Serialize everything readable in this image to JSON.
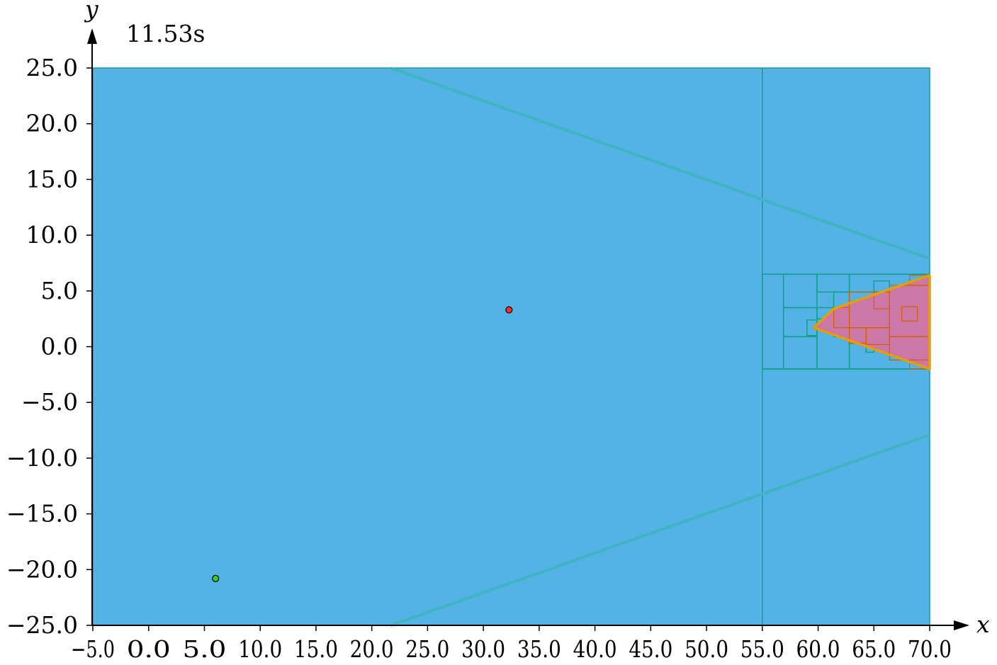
{
  "chart_data": {
    "type": "scatter",
    "xlabel": "x",
    "ylabel": "y",
    "annotation": "11.53s",
    "xlim": [
      -5,
      70
    ],
    "ylim": [
      -25,
      25
    ],
    "x_ticks": [
      -5,
      0,
      5,
      10,
      15,
      20,
      25,
      30,
      35,
      40,
      45,
      50,
      55,
      60,
      65,
      70
    ],
    "x_tick_labels": [
      "−5.0",
      "0.0",
      "5.0",
      "10.0",
      "15.0",
      "20.0",
      "25.0",
      "30.0",
      "35.0",
      "40.0",
      "45.0",
      "50.0",
      "55.0",
      "60.0",
      "65.0",
      "70.0"
    ],
    "y_ticks": [
      -25,
      -20,
      -15,
      -10,
      -5,
      0,
      5,
      10,
      15,
      20,
      25
    ],
    "y_tick_labels": [
      "−25.0",
      "−20.0",
      "−15.0",
      "−10.0",
      "−5.0",
      "0.0",
      "5.0",
      "10.0",
      "15.0",
      "20.0",
      "25.0"
    ],
    "grid": false,
    "colors": {
      "region_fill": "#55b2e5",
      "cell_edge": "#11a08a",
      "cone_line": "#3fb4c4",
      "target_fill": "#cc78a7",
      "target_edge": "#d55e00",
      "target_outline": "#e69f00",
      "start_point": "#33cc33",
      "goal_point": "#ff2a2a"
    },
    "domain_rect": {
      "x": [
        -5,
        70
      ],
      "y": [
        -25,
        25
      ]
    },
    "partition_lines_x": [
      55
    ],
    "cone_lines": [
      {
        "points": [
          [
            21.7,
            25
          ],
          [
            70,
            7.9
          ]
        ]
      },
      {
        "points": [
          [
            21.7,
            -25
          ],
          [
            70,
            -7.9
          ]
        ]
      }
    ],
    "refined_box": {
      "x": [
        55,
        70
      ],
      "y": [
        -2.0,
        6.5
      ]
    },
    "refined_cells": [
      [
        55,
        56.9,
        -2.0,
        6.5
      ],
      [
        56.9,
        59.9,
        -2.0,
        0.9
      ],
      [
        56.9,
        59.9,
        0.9,
        3.5
      ],
      [
        56.9,
        59.9,
        3.5,
        6.5
      ],
      [
        59.9,
        62.8,
        -2.0,
        1.7
      ],
      [
        59.9,
        62.8,
        4.9,
        6.5
      ],
      [
        62.8,
        70,
        -2.0,
        0.9
      ],
      [
        62.8,
        70,
        4.9,
        6.5
      ],
      [
        59.9,
        61.4,
        2.5,
        3.5
      ],
      [
        61.4,
        62.8,
        3.5,
        4.9
      ],
      [
        61.4,
        62.8,
        0.9,
        1.7
      ],
      [
        65.0,
        66.4,
        4.9,
        5.9
      ],
      [
        66.4,
        67.9,
        -1.2,
        0.0
      ],
      [
        59.0,
        59.9,
        1.0,
        2.4
      ],
      [
        62.8,
        63.6,
        0.3,
        0.9
      ],
      [
        64.3,
        65.0,
        -0.5,
        0.2
      ]
    ],
    "target_polygon": [
      [
        59.6,
        1.7
      ],
      [
        61.4,
        3.4
      ],
      [
        70,
        6.4
      ],
      [
        70,
        -2.0
      ]
    ],
    "target_cells": [
      [
        62.8,
        66.4,
        1.7,
        4.9
      ],
      [
        66.4,
        70,
        0.9,
        5.5
      ],
      [
        66.4,
        70,
        -1.2,
        0.9
      ],
      [
        62.8,
        64.3,
        0.3,
        1.7
      ],
      [
        61.4,
        62.8,
        1.7,
        3.5
      ],
      [
        64.3,
        66.4,
        0.2,
        1.7
      ],
      [
        68.2,
        70,
        5.5,
        6.4
      ],
      [
        68.2,
        70,
        -2.0,
        -1.2
      ],
      [
        65.0,
        66.4,
        3.4,
        4.9
      ],
      [
        67.5,
        68.9,
        2.3,
        3.6
      ]
    ],
    "points": [
      {
        "name": "start",
        "x": 6.0,
        "y": -20.8,
        "color": "#33cc33"
      },
      {
        "name": "goal",
        "x": 32.3,
        "y": 3.3,
        "color": "#ff2a2a"
      }
    ]
  }
}
